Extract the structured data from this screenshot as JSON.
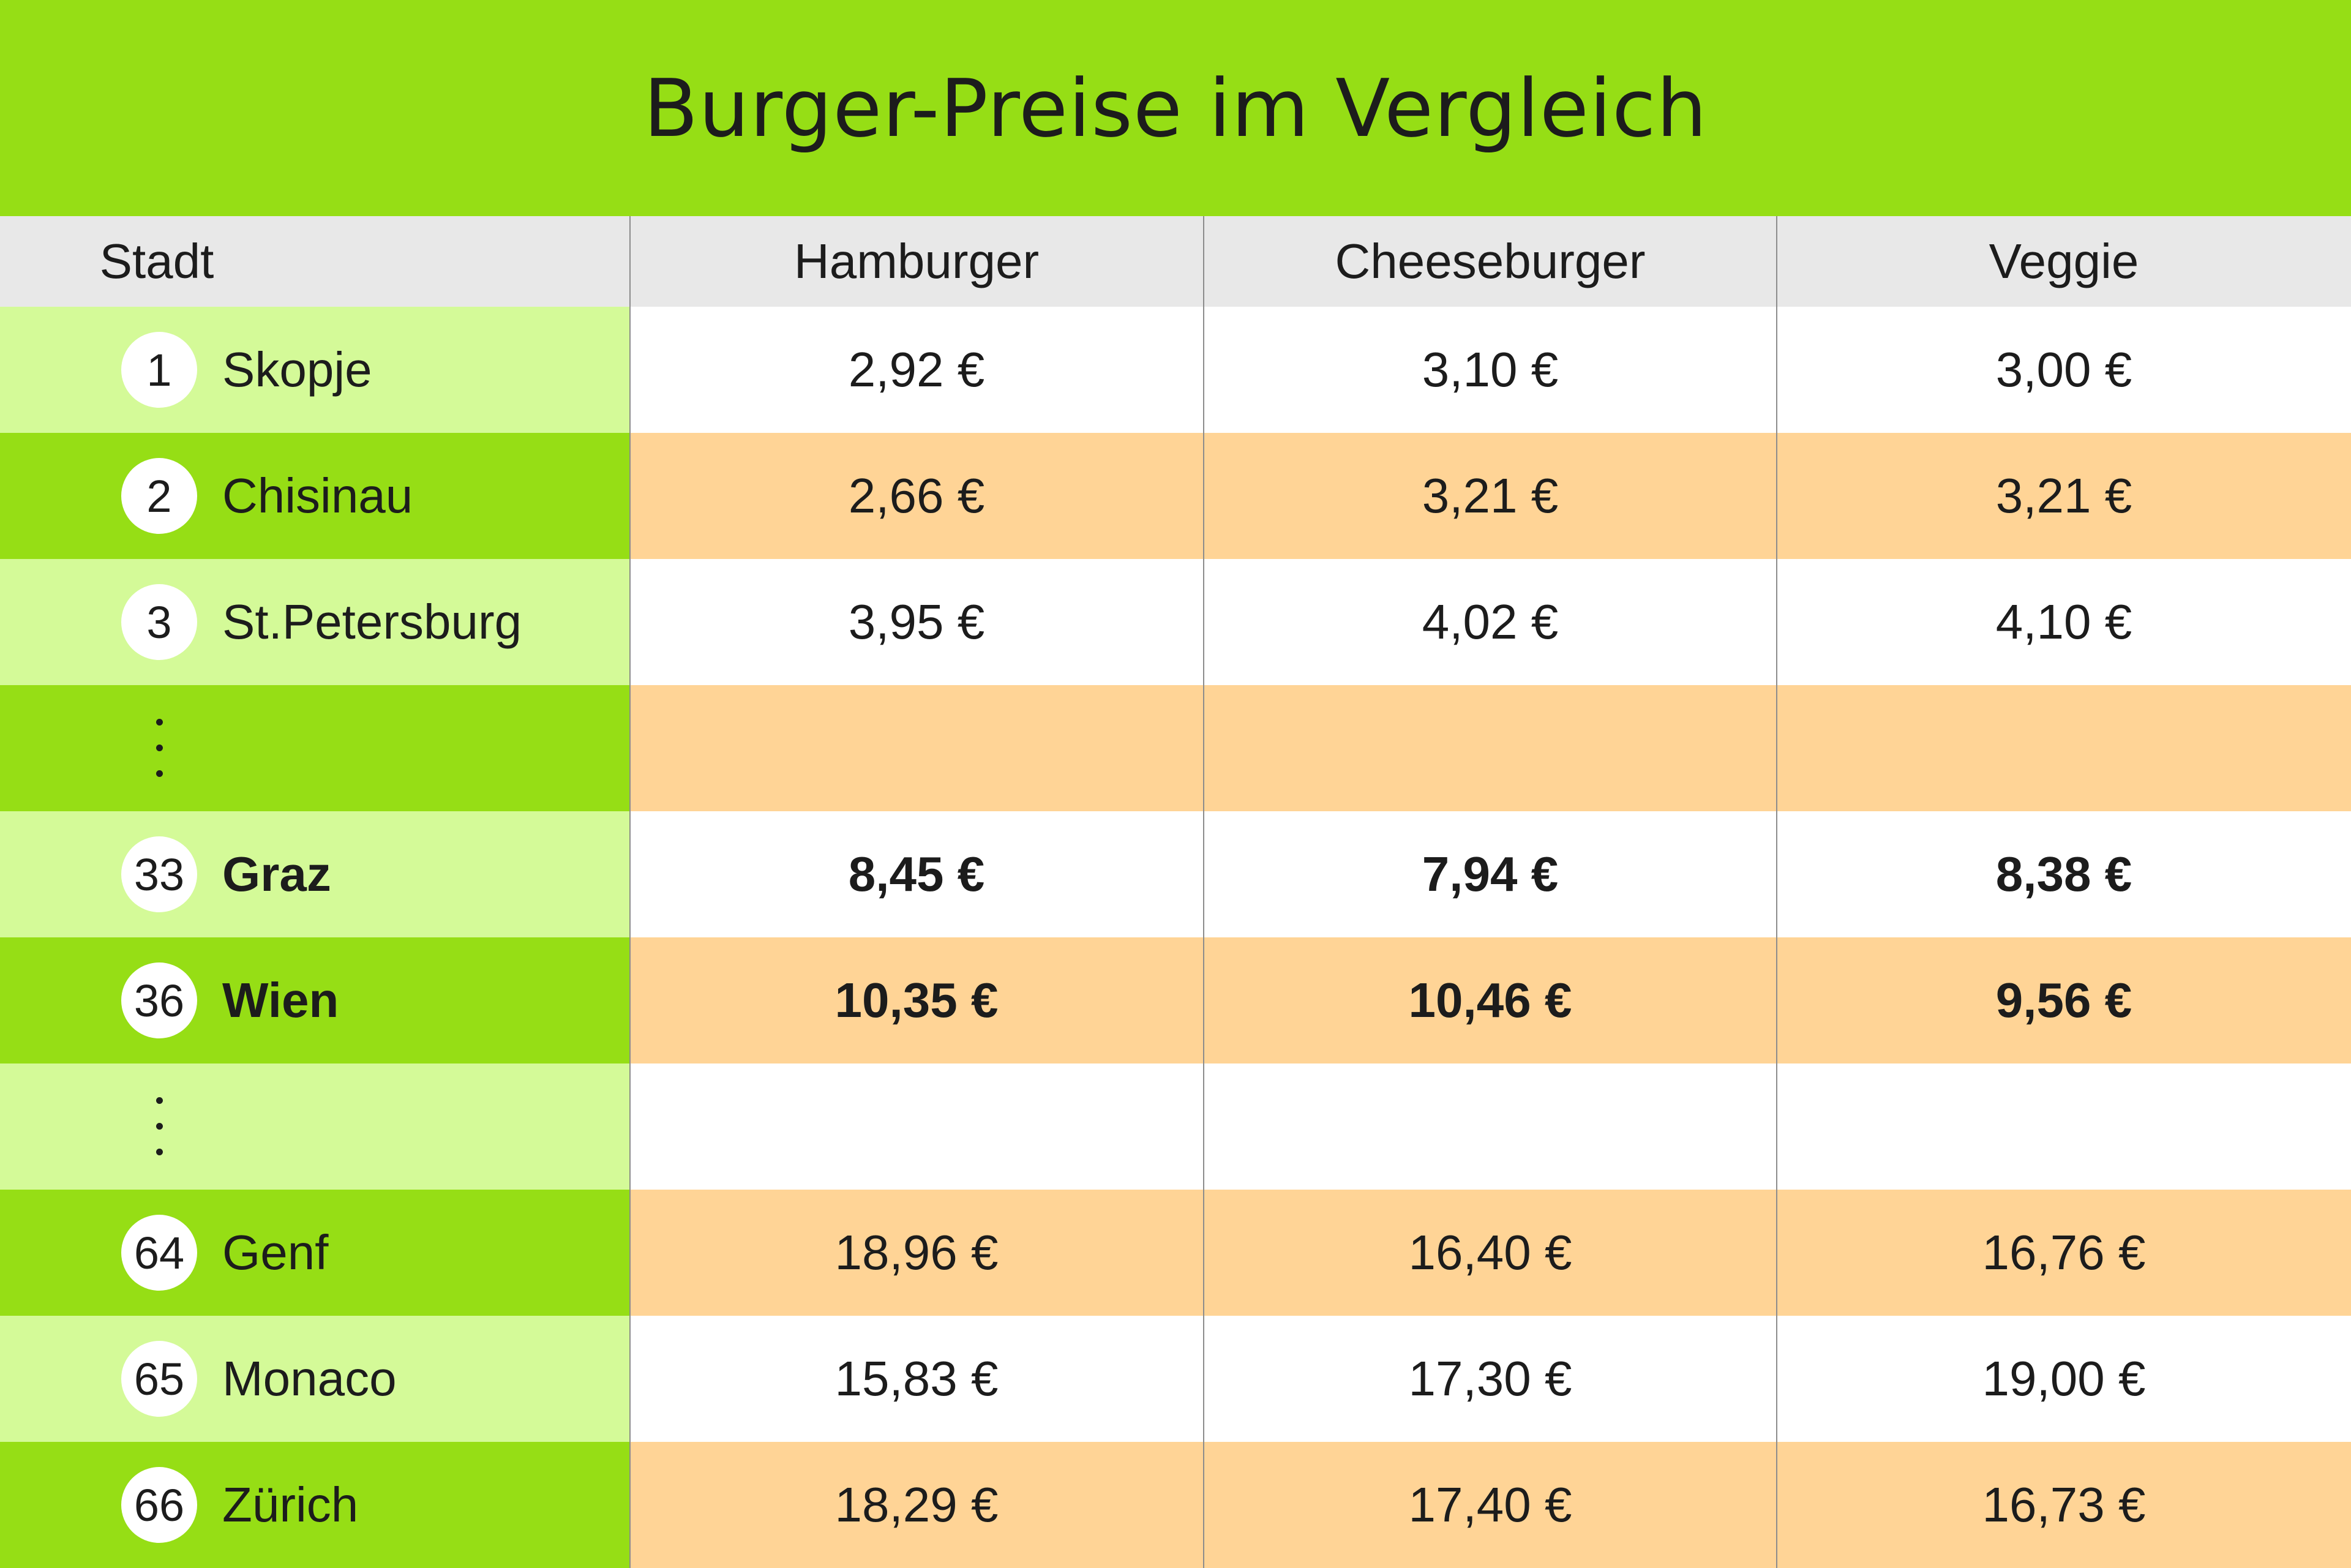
{
  "title": "Burger-Preise im Vergleich",
  "colors": {
    "title_bg": "#96de15",
    "header_bg": "#e8e8e8",
    "city_light": "#d4fa98",
    "city_dark": "#96de15",
    "row_orange": "#ffd496",
    "row_white": "#ffffff"
  },
  "chart_data": {
    "type": "table",
    "title": "Burger-Preise im Vergleich",
    "columns": [
      "Stadt",
      "Hamburger",
      "Cheeseburger",
      "Veggie"
    ],
    "rows": [
      {
        "rank": "1",
        "city": "Skopje",
        "hamburger": "2,92 €",
        "cheeseburger": "3,10 €",
        "veggie": "3,00 €",
        "bold": false,
        "ellipsis": false
      },
      {
        "rank": "2",
        "city": "Chisinau",
        "hamburger": "2,66 €",
        "cheeseburger": "3,21 €",
        "veggie": "3,21 €",
        "bold": false,
        "ellipsis": false
      },
      {
        "rank": "3",
        "city": "St.Petersburg",
        "hamburger": "3,95 €",
        "cheeseburger": "4,02 €",
        "veggie": "4,10 €",
        "bold": false,
        "ellipsis": false
      },
      {
        "rank": "",
        "city": "",
        "hamburger": "",
        "cheeseburger": "",
        "veggie": "",
        "bold": false,
        "ellipsis": true
      },
      {
        "rank": "33",
        "city": "Graz",
        "hamburger": "8,45 €",
        "cheeseburger": "7,94 €",
        "veggie": "8,38 €",
        "bold": true,
        "ellipsis": false
      },
      {
        "rank": "36",
        "city": "Wien",
        "hamburger": "10,35 €",
        "cheeseburger": "10,46 €",
        "veggie": "9,56 €",
        "bold": true,
        "ellipsis": false
      },
      {
        "rank": "",
        "city": "",
        "hamburger": "",
        "cheeseburger": "",
        "veggie": "",
        "bold": false,
        "ellipsis": true
      },
      {
        "rank": "64",
        "city": "Genf",
        "hamburger": "18,96 €",
        "cheeseburger": "16,40 €",
        "veggie": "16,76 €",
        "bold": false,
        "ellipsis": false
      },
      {
        "rank": "65",
        "city": "Monaco",
        "hamburger": "15,83 €",
        "cheeseburger": "17,30 €",
        "veggie": "19,00 €",
        "bold": false,
        "ellipsis": false
      },
      {
        "rank": "66",
        "city": "Zürich",
        "hamburger": "18,29 €",
        "cheeseburger": "17,40 €",
        "veggie": "16,73 €",
        "bold": false,
        "ellipsis": false
      }
    ]
  }
}
